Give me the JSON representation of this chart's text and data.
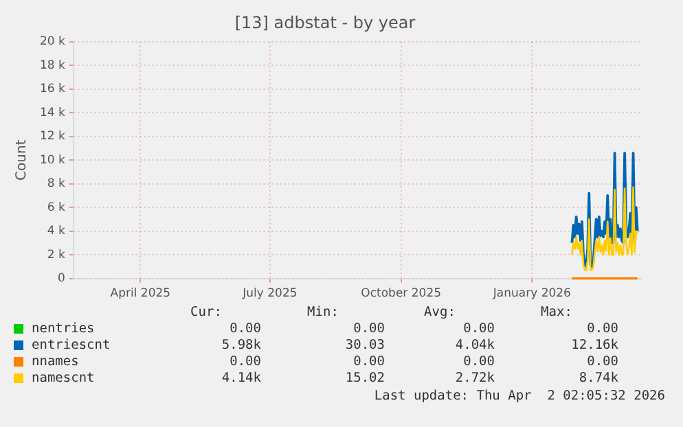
{
  "chart_data": {
    "type": "line",
    "title": "[13] adbstat - by year",
    "ylabel": "Count",
    "xlim": [
      "2025-02-27",
      "2026-04-02"
    ],
    "xticks": [
      {
        "value": "2025-04-15",
        "label": "April 2025"
      },
      {
        "value": "2025-07-15",
        "label": "July 2025"
      },
      {
        "value": "2025-10-15",
        "label": "October 2025"
      },
      {
        "value": "2026-01-15",
        "label": "January 2026"
      }
    ],
    "ylim": [
      0,
      20000
    ],
    "yticks": [
      {
        "value": 0,
        "label": "0"
      },
      {
        "value": 2000,
        "label": "2 k"
      },
      {
        "value": 4000,
        "label": "4 k"
      },
      {
        "value": 6000,
        "label": "6 k"
      },
      {
        "value": 8000,
        "label": "8 k"
      },
      {
        "value": 10000,
        "label": "10 k"
      },
      {
        "value": 12000,
        "label": "12 k"
      },
      {
        "value": 14000,
        "label": "14 k"
      },
      {
        "value": 16000,
        "label": "16 k"
      },
      {
        "value": 18000,
        "label": "18 k"
      },
      {
        "value": 20000,
        "label": "20 k"
      }
    ],
    "grid": true,
    "legend": "bottom",
    "marker": "none",
    "x": [
      "2026-02-12",
      "2026-02-13",
      "2026-02-14",
      "2026-02-15",
      "2026-02-16",
      "2026-02-17",
      "2026-02-18",
      "2026-02-19",
      "2026-02-20",
      "2026-02-21",
      "2026-02-22",
      "2026-02-23",
      "2026-02-24",
      "2026-02-25",
      "2026-02-26",
      "2026-02-27",
      "2026-02-28",
      "2026-03-01",
      "2026-03-02",
      "2026-03-03",
      "2026-03-04",
      "2026-03-05",
      "2026-03-06",
      "2026-03-07",
      "2026-03-08",
      "2026-03-09",
      "2026-03-10",
      "2026-03-11",
      "2026-03-12",
      "2026-03-13",
      "2026-03-14",
      "2026-03-15",
      "2026-03-16",
      "2026-03-17",
      "2026-03-18",
      "2026-03-19",
      "2026-03-20",
      "2026-03-21",
      "2026-03-22",
      "2026-03-23",
      "2026-03-24",
      "2026-03-25",
      "2026-03-26",
      "2026-03-27",
      "2026-03-28",
      "2026-03-29",
      "2026-03-30"
    ],
    "series": [
      {
        "name": "nentries",
        "color": "#00cc00",
        "values": [
          null,
          null,
          null,
          null,
          null,
          null,
          null,
          null,
          null,
          null,
          null,
          null,
          null,
          null,
          null,
          null,
          null,
          null,
          null,
          null,
          null,
          null,
          null,
          null,
          null,
          null,
          null,
          null,
          null,
          null,
          null,
          null,
          null,
          null,
          null,
          null,
          null,
          null,
          null,
          null,
          null,
          null,
          null,
          null,
          null,
          null,
          null
        ]
      },
      {
        "name": "entriescnt",
        "color": "#0066b3",
        "values": [
          3000,
          4500,
          3500,
          5200,
          3800,
          4600,
          3200,
          4800,
          2000,
          1100,
          1000,
          2500,
          7200,
          1200,
          1000,
          1500,
          3200,
          5000,
          3500,
          5200,
          3600,
          4000,
          3500,
          4800,
          3800,
          7000,
          3500,
          5000,
          3000,
          3000,
          10600,
          3500,
          4500,
          3500,
          4200,
          3200,
          3000,
          10600,
          4500,
          3500,
          4000,
          5500,
          3000,
          10600,
          3500,
          6000,
          4000
        ]
      },
      {
        "name": "nnames",
        "color": "#ff8000",
        "x": [
          "2026-02-12",
          "2026-03-30"
        ],
        "values": [
          0,
          0
        ]
      },
      {
        "name": "namescnt",
        "color": "#ffcc00",
        "values": [
          2000,
          3000,
          2500,
          3500,
          2500,
          3000,
          2000,
          3200,
          1200,
          700,
          700,
          1500,
          5000,
          700,
          700,
          1000,
          2200,
          3200,
          2300,
          3500,
          2200,
          2800,
          2000,
          3200,
          2300,
          4800,
          2000,
          3400,
          2000,
          2000,
          7500,
          2200,
          3000,
          2000,
          2800,
          2000,
          2000,
          7600,
          3000,
          2000,
          2600,
          3800,
          2000,
          7700,
          2200,
          4000,
          3800
        ]
      }
    ],
    "annotations": [
      "Cur:",
      "Min:",
      "Avg:",
      "Max:",
      "0.00",
      "0.00",
      "0.00",
      "0.00",
      "5.98k",
      "30.03",
      "4.04k",
      "12.16k",
      "0.00",
      "0.00",
      "0.00",
      "0.00",
      "4.14k",
      "15.02",
      "2.72k",
      "8.74k",
      "Last update: Thu Apr  2 02:05:32 2026"
    ]
  }
}
